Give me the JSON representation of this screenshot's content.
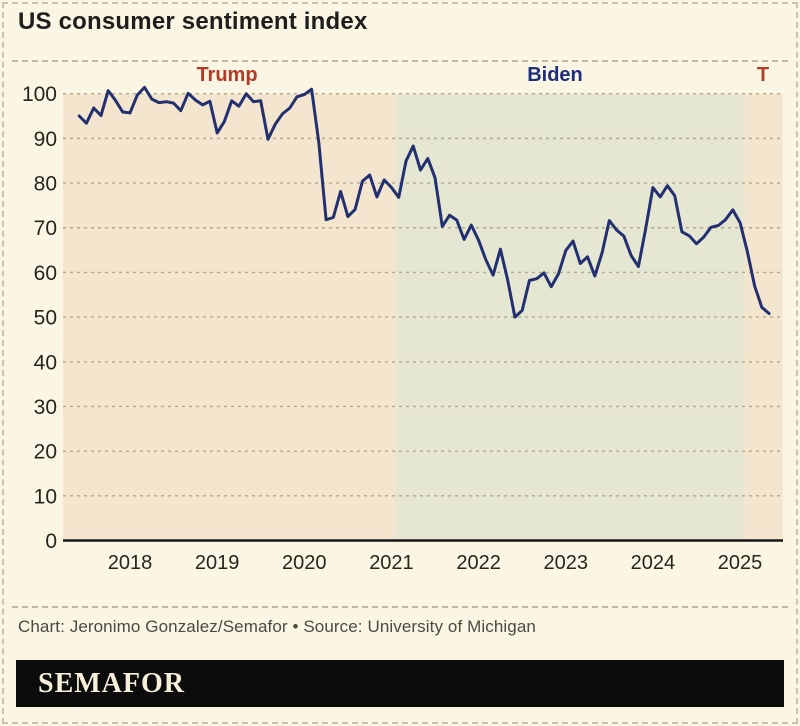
{
  "page": {
    "title": "US consumer sentiment index",
    "credit": "Chart: Jeronimo Gonzalez/Semafor • Source: University of Michigan",
    "brand": "SEMAFOR",
    "background_color": "#faf6e3"
  },
  "chart_data": {
    "type": "line",
    "title": "US consumer sentiment index",
    "source": "University of Michigan",
    "xlabel": "",
    "ylabel": "",
    "ylim": [
      0,
      100
    ],
    "y_ticks": [
      0,
      10,
      20,
      30,
      40,
      50,
      60,
      70,
      80,
      90,
      100
    ],
    "x_ticks": [
      2018,
      2019,
      2020,
      2021,
      2022,
      2023,
      2024,
      2025
    ],
    "grid": "horizontal-dashed",
    "legend": "none",
    "colors": {
      "line": "#233070",
      "grid": "#b3a98e",
      "axis": "#161616",
      "tick_text": "#26261f"
    },
    "bands": [
      {
        "label": "Trump",
        "start": 2017.23,
        "end": 2021.04,
        "color": "#f4e6ce"
      },
      {
        "label": "Biden",
        "start": 2021.04,
        "end": 2025.05,
        "color": "#e5e7d3"
      },
      {
        "label": "Trump second term",
        "start": 2025.05,
        "end": 2025.49,
        "color": "#f4e6ce"
      }
    ],
    "annotations": [
      {
        "label": "Trump",
        "x": 2019.11,
        "color": "#b23a27"
      },
      {
        "label": "Biden",
        "x": 2022.88,
        "color": "#1e2d7a"
      },
      {
        "label": "T",
        "x": 2025.26,
        "color": "#b23a27"
      }
    ],
    "series": [
      {
        "name": "US consumer sentiment index",
        "frequency": "monthly",
        "start_year": 2017,
        "start_month": 6,
        "values": [
          95.0,
          93.4,
          96.8,
          95.1,
          100.7,
          98.5,
          95.9,
          95.7,
          99.7,
          101.4,
          98.8,
          98.0,
          98.2,
          97.9,
          96.2,
          100.1,
          98.6,
          97.5,
          98.3,
          91.2,
          93.8,
          98.4,
          97.2,
          100.0,
          98.2,
          98.4,
          89.8,
          93.2,
          95.5,
          96.8,
          99.3,
          99.8,
          101.0,
          89.1,
          71.8,
          72.3,
          78.1,
          72.5,
          74.1,
          80.4,
          81.8,
          76.9,
          80.7,
          79.0,
          76.8,
          84.9,
          88.3,
          82.9,
          85.5,
          81.2,
          70.3,
          72.8,
          71.7,
          67.4,
          70.6,
          67.2,
          62.8,
          59.4,
          65.2,
          58.4,
          50.0,
          51.5,
          58.2,
          58.6,
          59.9,
          56.8,
          59.7,
          64.9,
          67.0,
          62.0,
          63.5,
          59.2,
          64.4,
          71.6,
          69.5,
          68.1,
          63.8,
          61.3,
          69.7,
          79.0,
          76.9,
          79.4,
          77.2,
          69.1,
          68.2,
          66.4,
          67.9,
          70.1,
          70.5,
          71.8,
          74.0,
          71.1,
          64.7,
          57.0,
          52.2,
          50.8
        ]
      }
    ]
  }
}
